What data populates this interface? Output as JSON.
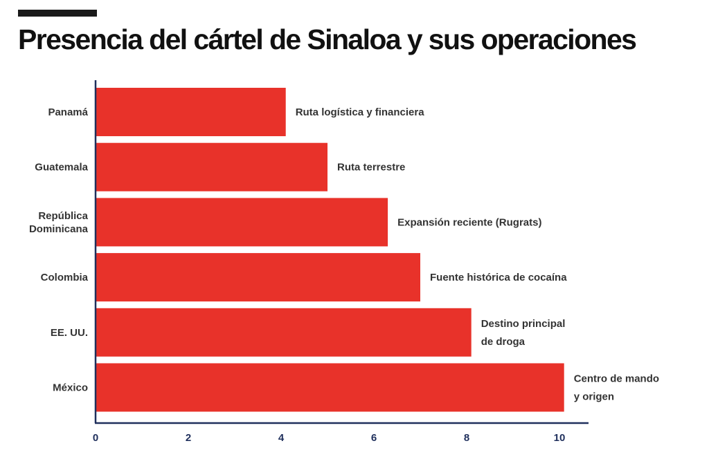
{
  "colors": {
    "bar": "#e8322a",
    "axis": "#1f2f5c",
    "text": "#333333",
    "title": "#111111"
  },
  "chart_data": {
    "type": "bar",
    "orientation": "horizontal",
    "title": "Presencia del cártel de Sinaloa y sus operaciones",
    "xlabel": "",
    "ylabel": "",
    "xlim": [
      0,
      10.7
    ],
    "xticks": [
      0,
      2,
      4,
      6,
      8,
      10
    ],
    "categories": [
      [
        "Panamá"
      ],
      [
        "Guatemala"
      ],
      [
        "República",
        "Dominicana"
      ],
      [
        "Colombia"
      ],
      [
        "EE. UU."
      ],
      [
        "México"
      ]
    ],
    "values": [
      4.1,
      5.0,
      6.3,
      7.0,
      8.1,
      10.1
    ],
    "annotations": [
      [
        "Ruta logística y financiera"
      ],
      [
        "Ruta terrestre"
      ],
      [
        "Expansión reciente (Rugrats)"
      ],
      [
        "Fuente histórica de cocaína"
      ],
      [
        "Destino principal",
        "de droga"
      ],
      [
        "Centro de mando",
        "y origen"
      ]
    ]
  }
}
